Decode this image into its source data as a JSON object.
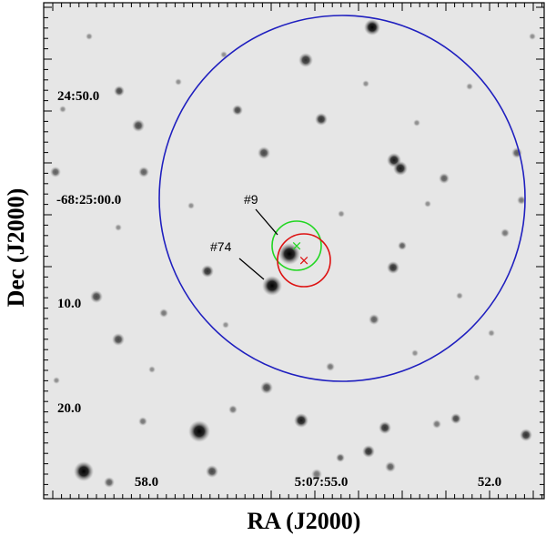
{
  "axes": {
    "x_title": "RA (J2000)",
    "y_title": "Dec (J2000)",
    "x_ticks": [
      "58.0",
      "5:07:55.0",
      "52.0"
    ],
    "y_ticks": [
      "24:50.0",
      "-68:25:00.0",
      "10.0",
      "20.0"
    ]
  },
  "annotations": {
    "source_a": "#9",
    "source_b": "#74"
  },
  "markers": {
    "green_cross": "×",
    "red_cross": "×"
  },
  "colors": {
    "large_circle": "#1f1fbf",
    "green_circle": "#22d622",
    "red_circle": "#dd1111",
    "background": "#e6e6e6"
  }
}
